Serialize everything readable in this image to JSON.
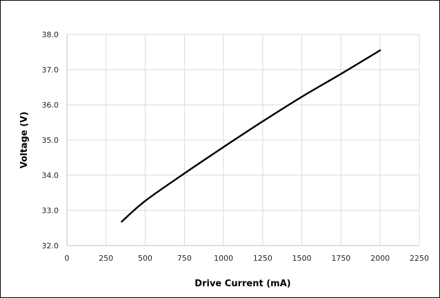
{
  "chart_data": {
    "type": "line",
    "title": "",
    "xlabel": "Drive Current (mA)",
    "ylabel": "Voltage (V)",
    "xlim": [
      0,
      2250
    ],
    "ylim": [
      32.0,
      38.0
    ],
    "x_ticks": [
      "0",
      "250",
      "500",
      "750",
      "1000",
      "1250",
      "1500",
      "1750",
      "2000",
      "2250"
    ],
    "y_ticks": [
      "32.0",
      "33.0",
      "34.0",
      "35.0",
      "36.0",
      "37.0",
      "38.0"
    ],
    "grid": true,
    "legend": "none",
    "series": [
      {
        "color": "#000000",
        "x": [
          350,
          500,
          750,
          1000,
          1250,
          1500,
          1750,
          2000
        ],
        "y": [
          32.68,
          33.27,
          34.05,
          34.8,
          35.53,
          36.23,
          36.88,
          37.55
        ]
      }
    ]
  }
}
